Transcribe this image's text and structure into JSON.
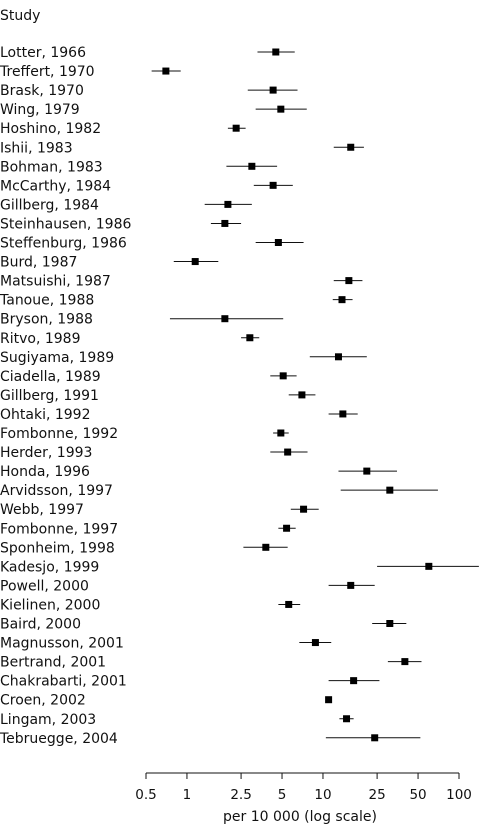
{
  "chart_data": {
    "type": "forest",
    "title": "Study",
    "xlabel": "per 10 000 (log scale)",
    "xscale": "log",
    "xlim": [
      0.5,
      100
    ],
    "xticks": [
      0.5,
      1,
      2.5,
      5,
      10,
      25,
      50,
      100
    ],
    "xtick_labels": [
      "0.5",
      "1",
      "2.5",
      "5",
      "10",
      "25",
      "50",
      "100"
    ],
    "grid": false,
    "studies": [
      {
        "label": "Lotter, 1966",
        "estimate": 4.5,
        "lower": 3.3,
        "upper": 6.2
      },
      {
        "label": "Treffert, 1970",
        "estimate": 0.7,
        "lower": 0.55,
        "upper": 0.9
      },
      {
        "label": "Brask, 1970",
        "estimate": 4.3,
        "lower": 2.8,
        "upper": 6.5
      },
      {
        "label": "Wing, 1979",
        "estimate": 4.9,
        "lower": 3.2,
        "upper": 7.6
      },
      {
        "label": "Hoshino, 1982",
        "estimate": 2.3,
        "lower": 2.0,
        "upper": 2.7
      },
      {
        "label": "Ishii, 1983",
        "estimate": 16,
        "lower": 12,
        "upper": 20
      },
      {
        "label": "Bohman, 1983",
        "estimate": 3.0,
        "lower": 1.95,
        "upper": 4.6
      },
      {
        "label": "McCarthy, 1984",
        "estimate": 4.3,
        "lower": 3.1,
        "upper": 6.0
      },
      {
        "label": "Gillberg, 1984",
        "estimate": 2.0,
        "lower": 1.35,
        "upper": 3.0
      },
      {
        "label": "Steinhausen, 1986",
        "estimate": 1.9,
        "lower": 1.5,
        "upper": 2.5
      },
      {
        "label": "Steffenburg, 1986",
        "estimate": 4.7,
        "lower": 3.2,
        "upper": 7.2
      },
      {
        "label": "Burd, 1987",
        "estimate": 1.15,
        "lower": 0.8,
        "upper": 1.7
      },
      {
        "label": "Matsuishi, 1987",
        "estimate": 15.5,
        "lower": 12,
        "upper": 19.5
      },
      {
        "label": "Tanoue, 1988",
        "estimate": 13.8,
        "lower": 11.8,
        "upper": 16.5
      },
      {
        "label": "Bryson, 1988",
        "estimate": 1.9,
        "lower": 0.75,
        "upper": 5.1
      },
      {
        "label": "Ritvo, 1989",
        "estimate": 2.9,
        "lower": 2.5,
        "upper": 3.4
      },
      {
        "label": "Sugiyama, 1989",
        "estimate": 13,
        "lower": 8.0,
        "upper": 21
      },
      {
        "label": "Ciadella, 1989",
        "estimate": 5.1,
        "lower": 4.1,
        "upper": 6.4
      },
      {
        "label": "Gillberg, 1991",
        "estimate": 7.0,
        "lower": 5.6,
        "upper": 8.8
      },
      {
        "label": "Ohtaki, 1992",
        "estimate": 14,
        "lower": 11,
        "upper": 18
      },
      {
        "label": "Fombonne, 1992",
        "estimate": 4.9,
        "lower": 4.3,
        "upper": 5.6
      },
      {
        "label": "Herder, 1993",
        "estimate": 5.5,
        "lower": 4.1,
        "upper": 7.7
      },
      {
        "label": "Honda, 1996",
        "estimate": 21,
        "lower": 13,
        "upper": 35
      },
      {
        "label": "Arvidsson, 1997",
        "estimate": 31,
        "lower": 13.5,
        "upper": 70
      },
      {
        "label": "Webb, 1997",
        "estimate": 7.2,
        "lower": 5.8,
        "upper": 9.3
      },
      {
        "label": "Fombonne, 1997",
        "estimate": 5.4,
        "lower": 4.7,
        "upper": 6.3
      },
      {
        "label": "Sponheim, 1998",
        "estimate": 3.8,
        "lower": 2.6,
        "upper": 5.5
      },
      {
        "label": "Kadesjo, 1999",
        "estimate": 60,
        "lower": 25,
        "upper": 140
      },
      {
        "label": "Powell, 2000",
        "estimate": 16,
        "lower": 11,
        "upper": 24
      },
      {
        "label": "Kielinen, 2000",
        "estimate": 5.6,
        "lower": 4.7,
        "upper": 6.8
      },
      {
        "label": "Baird, 2000",
        "estimate": 31,
        "lower": 23,
        "upper": 41
      },
      {
        "label": "Magnusson, 2001",
        "estimate": 8.8,
        "lower": 6.7,
        "upper": 11.5
      },
      {
        "label": "Bertrand, 2001",
        "estimate": 40,
        "lower": 30,
        "upper": 53
      },
      {
        "label": "Chakrabarti, 2001",
        "estimate": 16.8,
        "lower": 11,
        "upper": 26
      },
      {
        "label": "Croen, 2002",
        "estimate": 11,
        "lower": 10.5,
        "upper": 11.5
      },
      {
        "label": "Lingam, 2003",
        "estimate": 14.9,
        "lower": 13.2,
        "upper": 16.8
      },
      {
        "label": "Tebruegge, 2004",
        "estimate": 24,
        "lower": 10.5,
        "upper": 52
      }
    ]
  }
}
